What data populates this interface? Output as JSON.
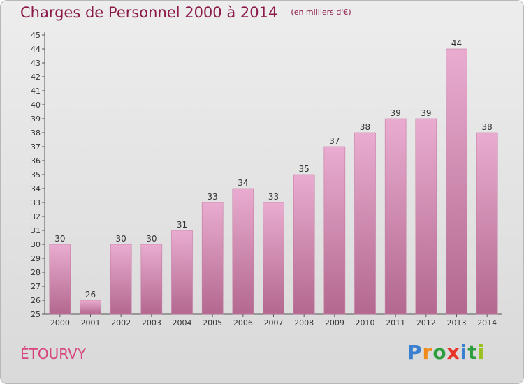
{
  "chart_data": {
    "type": "bar",
    "title": "Charges de Personnel 2000 à 2014",
    "subtitle": "(en milliers d'€)",
    "categories": [
      "2000",
      "2001",
      "2002",
      "2003",
      "2004",
      "2005",
      "2006",
      "2007",
      "2008",
      "2009",
      "2010",
      "2011",
      "2012",
      "2013",
      "2014"
    ],
    "values": [
      30,
      26,
      30,
      30,
      31,
      33,
      34,
      33,
      35,
      37,
      38,
      39,
      39,
      44,
      38
    ],
    "ylim": [
      25,
      45
    ],
    "yticks": [
      25,
      26,
      27,
      28,
      29,
      30,
      31,
      32,
      33,
      34,
      35,
      36,
      37,
      38,
      39,
      40,
      41,
      42,
      43,
      44,
      45
    ],
    "grid": false,
    "colors": {
      "bar_top": "#e9acd0",
      "bar_bottom": "#b3688f",
      "bar_edge": "#c77aa2",
      "text": "#8b1a4a"
    }
  },
  "commune": "ÉTOURVY",
  "brand": {
    "text": "Proxiti",
    "letters": [
      "P",
      "r",
      "o",
      "x",
      "i",
      "t",
      "i"
    ]
  }
}
